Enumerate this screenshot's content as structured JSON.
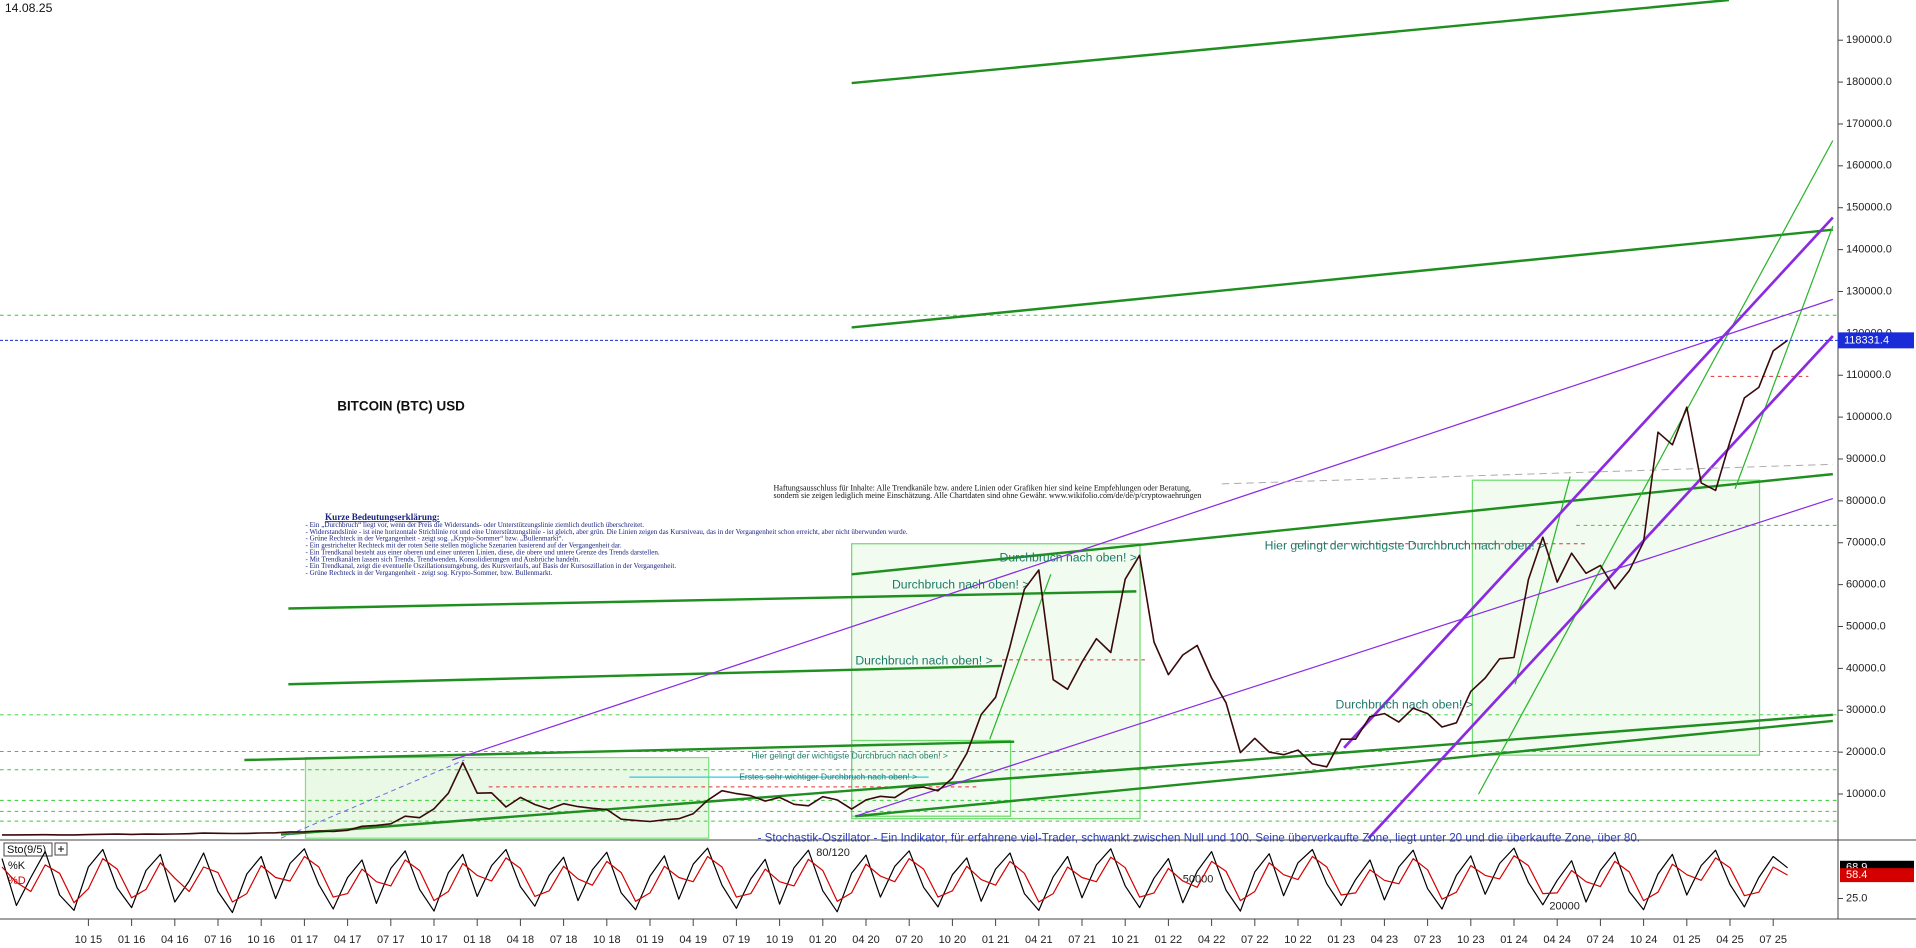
{
  "date": "14.08.25",
  "annotations": [
    "Durchbruch nach oben! >",
    "Durchbruch nach oben! >",
    "Durchbruch nach oben! >",
    "Durchbruch nach oben! >",
    "Hier gelingt der wichtigste Durchbruch nach oben! >",
    "Hier gelingt der wichtigste Durchbruch nach oben! >",
    "Erstes sehr wichtiger Durchbruch nach oben! >",
    "- Stochastik-Oszillator - Ein Indikator, für erfahrene viel-Trader, schwankt zwischen Null und 100. Seine überverkaufte Zone, liegt unter 20 und die überkaufte Zone, über 80.",
    "80/120",
    "50000",
    "20000"
  ],
  "disclaimer": [
    "Haftungsausschluss für Inhalte: Alle Trendkanäle bzw. andere Linien oder Grafiken hier sind keine Empfehlungen oder Beratung,",
    "sondern sie zeigen lediglich meine Einschätzung. Alle Chartdaten sind ohne Gewähr. www.wikifolio.com/de/de/p/cryptowaehrungen"
  ],
  "legend": {
    "title": "Kurze Bedeutungserklärung:",
    "lines": [
      "- Ein „Durchbruch“ liegt vor, wenn der Preis die Widerstands- oder Unterstützungslinie ziemlich deutlich überschreitet.",
      "- Widerstandslinie - ist eine horizontale Strichlinie rot und eine Unterstützungslinie - ist gleich, aber grün. Die Linien zeigen das Kursniveau, das in der Vergangenheit schon erreicht, aber nicht überwunden wurde.",
      "- Grüne Rechteck in der Vergangenheit - zeigt sog. „Krypto-Sommer“ bzw. „Bullenmarkt“.",
      "- Ein gestrichelter Rechteck mit der roten Seite stellen mögliche Szenarien basierend auf der Vergangenheit dar.",
      "- Ein Trendkanal besteht aus einer oberen und einer unteren Linien, diese, die obere und untere Grenze des Trends darstellen.",
      "- Mit Trendkanälen lassen sich Trends, Trendwenden, Konsolidierungen und Ausbrüche handeln.",
      "- Ein Trendkanal, zeigt die eventuelle Oszillationsumgebung, des Kursverlaufs, auf Basis der Kursoszillation in der Vergangenheit.",
      "- Grüne Rechteck in der Vergangenheit - zeigt sog. Krypto-Sommer, bzw. Bullenmarkt."
    ]
  },
  "chart_data": [
    {
      "type": "line",
      "title": "BITCOIN (BTC) USD",
      "color": "#3a0a0a",
      "categories": [
        null,
        null,
        null,
        null,
        null,
        null,
        "10 15",
        null,
        null,
        "01 16",
        null,
        null,
        "04 16",
        null,
        null,
        "07 16",
        null,
        null,
        "10 16",
        null,
        null,
        "01 17",
        null,
        null,
        "04 17",
        null,
        null,
        "07 17",
        null,
        null,
        "10 17",
        null,
        null,
        "01 18",
        null,
        null,
        "04 18",
        null,
        null,
        "07 18",
        null,
        null,
        "10 18",
        null,
        null,
        "01 19",
        null,
        null,
        "04 19",
        null,
        null,
        "07 19",
        null,
        null,
        "10 19",
        null,
        null,
        "01 20",
        null,
        null,
        "04 20",
        null,
        null,
        "07 20",
        null,
        null,
        "10 20",
        null,
        null,
        "01 21",
        null,
        null,
        "04 21",
        null,
        null,
        "07 21",
        null,
        null,
        "10 21",
        null,
        null,
        "01 22",
        null,
        null,
        "04 22",
        null,
        null,
        "07 22",
        null,
        null,
        "10 22",
        null,
        null,
        "01 23",
        null,
        null,
        "04 23",
        null,
        null,
        "07 23",
        null,
        null,
        "10 23",
        null,
        null,
        "01 24",
        null,
        null,
        "04 24",
        null,
        null,
        "07 24",
        null,
        null,
        "10 24",
        null,
        null,
        "01 25",
        null,
        null,
        "04 25",
        null,
        null,
        "07 25",
        null
      ],
      "values": [
        236,
        230,
        263,
        284,
        230,
        236,
        314,
        377,
        430,
        368,
        437,
        416,
        448,
        531,
        673,
        624,
        575,
        609,
        701,
        740,
        963,
        970,
        1190,
        1080,
        1350,
        2300,
        2500,
        2880,
        4700,
        4340,
        6470,
        10200,
        17500,
        10200,
        10300,
        6900,
        9200,
        7500,
        6400,
        7700,
        7000,
        6600,
        6300,
        4000,
        3700,
        3450,
        3850,
        4100,
        5300,
        8500,
        10800,
        10100,
        9600,
        8300,
        9200,
        7550,
        7200,
        9350,
        8600,
        6400,
        8600,
        9450,
        9140,
        11350,
        11650,
        10780,
        13800,
        19700,
        29000,
        33100,
        45200,
        58900,
        63500,
        37300,
        35000,
        41500,
        47100,
        43800,
        61300,
        67000,
        46300,
        38500,
        43200,
        45500,
        37700,
        31800,
        19900,
        23300,
        20000,
        19400,
        20500,
        17200,
        16500,
        23100,
        23100,
        28500,
        29200,
        27200,
        30500,
        29200,
        26000,
        27000,
        34500,
        37700,
        42300,
        42600,
        61200,
        71300,
        60600,
        67500,
        62700,
        64600,
        59000,
        63300,
        70200,
        96400,
        93400,
        102400,
        84300,
        82500,
        94200,
        104600,
        107100,
        115800,
        118331.4
      ],
      "ylim": [
        -500,
        199600
      ],
      "yticks": [
        {
          "value": 10000,
          "label": "10000.0"
        },
        {
          "value": 20000,
          "label": "20000.0"
        },
        {
          "value": 30000,
          "label": "30000.0"
        },
        {
          "value": 40000,
          "label": "40000.0"
        },
        {
          "value": 50000,
          "label": "50000.0"
        },
        {
          "value": 60000,
          "label": "60000.0"
        },
        {
          "value": 70000,
          "label": "70000.0"
        },
        {
          "value": 80000,
          "label": "80000.0"
        },
        {
          "value": 90000,
          "label": "90000.0"
        },
        {
          "value": 100000,
          "label": "100000.0"
        },
        {
          "value": 110000,
          "label": "110000.0"
        },
        {
          "value": 120000,
          "label": "120000.0"
        },
        {
          "value": 130000,
          "label": "130000.0"
        },
        {
          "value": 140000,
          "label": "140000.0"
        },
        {
          "value": 150000,
          "label": "150000.0"
        },
        {
          "value": 160000,
          "label": "160000.0"
        },
        {
          "value": 170000,
          "label": "170000.0"
        },
        {
          "value": 180000,
          "label": "180000.0"
        },
        {
          "value": 190000,
          "label": "190000.0"
        }
      ],
      "current_price_color": "#1a2bd8"
    },
    {
      "type": "line",
      "title": "Sto(9/5)",
      "series": [
        {
          "name": "%K",
          "color": "#000000",
          "values": [
            82,
            15,
            55,
            92,
            30,
            8,
            70,
            95,
            40,
            12,
            65,
            88,
            20,
            50,
            90,
            35,
            5,
            60,
            85,
            25,
            75,
            96,
            45,
            10,
            55,
            80,
            18,
            68,
            93,
            38,
            7,
            62,
            88,
            28,
            72,
            95,
            42,
            14,
            58,
            84,
            22,
            66,
            91,
            33,
            9,
            57,
            86,
            24,
            74,
            97,
            44,
            11,
            53,
            81,
            17,
            69,
            94,
            36,
            6,
            61,
            87,
            27,
            71,
            93,
            41,
            13,
            59,
            83,
            21,
            67,
            90,
            32,
            8,
            56,
            85,
            26,
            73,
            96,
            43,
            12,
            54,
            82,
            19,
            64,
            92,
            37,
            7,
            63,
            89,
            29,
            76,
            95,
            46,
            15,
            52,
            80,
            23,
            70,
            94,
            39,
            10,
            58,
            86,
            31,
            75,
            97,
            48,
            16,
            51,
            79,
            20,
            65,
            91,
            35,
            9,
            60,
            88,
            30,
            72,
            94,
            45,
            13,
            55,
            85,
            68.9
          ]
        },
        {
          "name": "%D",
          "color": "#d40000",
          "values": [
            70,
            48,
            35,
            73,
            61,
            19,
            39,
            82,
            67,
            26,
            38,
            76,
            54,
            35,
            70,
            62,
            20,
            32,
            72,
            55,
            50,
            85,
            70,
            27,
            32,
            67,
            49,
            43,
            80,
            65,
            22,
            35,
            75,
            58,
            50,
            83,
            68,
            28,
            36,
            71,
            53,
            44,
            78,
            62,
            21,
            33,
            71,
            55,
            49,
            85,
            70,
            27,
            32,
            67,
            49,
            43,
            81,
            65,
            21,
            33,
            74,
            57,
            49,
            82,
            67,
            27,
            36,
            71,
            52,
            44,
            78,
            61,
            20,
            32,
            70,
            55,
            49,
            84,
            69,
            27,
            33,
            68,
            50,
            41,
            78,
            64,
            22,
            35,
            76,
            59,
            52,
            85,
            70,
            30,
            33,
            66,
            51,
            46,
            82,
            66,
            24,
            34,
            72,
            58,
            53,
            86,
            72,
            32,
            33,
            65,
            49,
            42,
            78,
            63,
            22,
            34,
            74,
            59,
            51,
            83,
            69,
            29,
            34,
            70,
            58.4
          ]
        }
      ],
      "ylim": [
        0,
        100
      ],
      "yticks": [
        {
          "value": 25,
          "label": "25.0"
        }
      ]
    }
  ]
}
